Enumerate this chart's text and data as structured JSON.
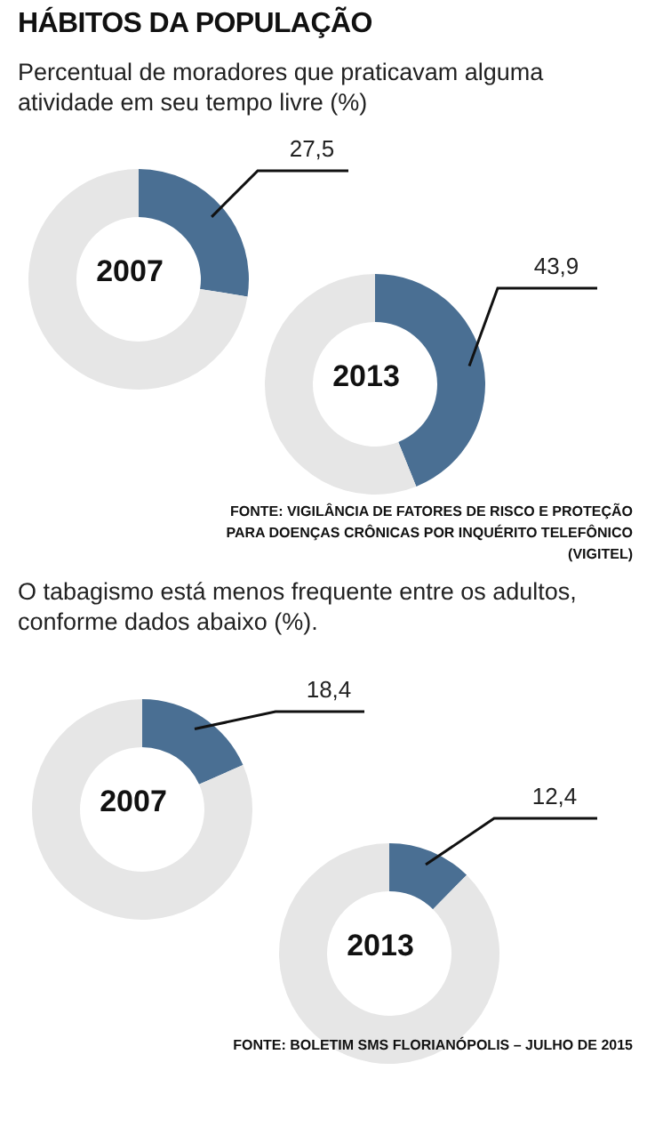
{
  "chart_data": [
    {
      "type": "other",
      "title": "HÁBITOS DA POPULAÇÃO"
    },
    {
      "type": "donut",
      "title": "2007",
      "subtitle": "Percentual de moradores que praticavam alguma atividade em seu tempo livre (%)",
      "categories": [
        null,
        null
      ],
      "values": [
        27.5,
        72.5
      ],
      "colors": [
        "#4a6f93",
        "#e6e6e6"
      ],
      "value_labels": [
        "27,5",
        null
      ]
    },
    {
      "type": "donut",
      "title": "2013",
      "categories": [
        null,
        null
      ],
      "values": [
        43.9,
        56.1
      ],
      "colors": [
        "#4a6f93",
        "#e6e6e6"
      ],
      "value_labels": [
        "43,9",
        null
      ],
      "annotations": [
        "FONTE: VIGILÂNCIA DE FATORES DE RISCO E PROTEÇÃO PARA DOENÇAS CRÔNICAS POR INQUÉRITO TELEFÔNICO (VIGITEL)"
      ]
    },
    {
      "type": "donut",
      "title": "2007",
      "subtitle": "O tabagismo está menos frequente entre os adultos, conforme dados abaixo (%).",
      "categories": [
        null,
        null
      ],
      "values": [
        18.4,
        81.6
      ],
      "colors": [
        "#4a6f93",
        "#e6e6e6"
      ],
      "value_labels": [
        "18,4",
        null
      ]
    },
    {
      "type": "donut",
      "title": "2013",
      "categories": [
        null,
        null
      ],
      "values": [
        12.4,
        87.6
      ],
      "colors": [
        "#4a6f93",
        "#e6e6e6"
      ],
      "value_labels": [
        "12,4",
        null
      ],
      "annotations": [
        "FONTE: BOLETIM SMS FLORIANÓPOLIS – JULHO DE 2015"
      ]
    }
  ]
}
